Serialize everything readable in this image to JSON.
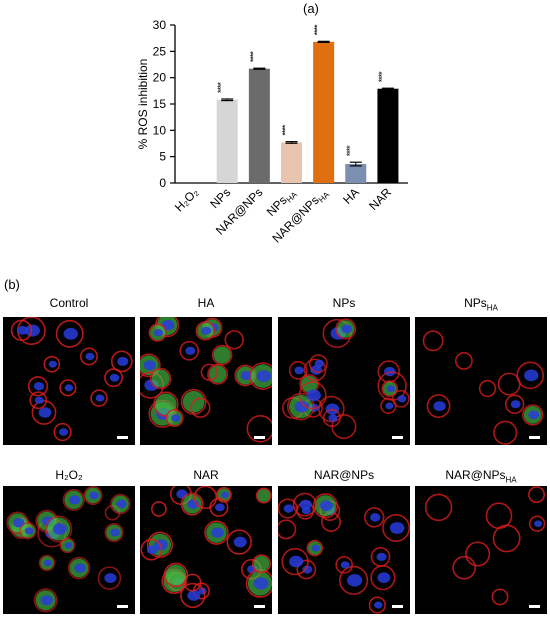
{
  "panel_a_label": "(a)",
  "panel_b_label": "(b)",
  "chart_data": {
    "type": "bar",
    "ylabel": "% ROS inhibition",
    "ylim": [
      0,
      30
    ],
    "yticks": [
      0,
      5,
      10,
      15,
      20,
      25,
      30
    ],
    "categories": [
      "H₂O₂",
      "NPs",
      "NAR@NPs",
      "NPs_HA",
      "NAR@NPs_HA",
      "HA",
      "NAR"
    ],
    "category_labels": [
      {
        "main": "H₂O₂",
        "sub": ""
      },
      {
        "main": "NPs",
        "sub": ""
      },
      {
        "main": "NAR@NPs",
        "sub": ""
      },
      {
        "main": "NPs",
        "sub": "HA"
      },
      {
        "main": "NAR@NPs",
        "sub": "HA"
      },
      {
        "main": "HA",
        "sub": ""
      },
      {
        "main": "NAR",
        "sub": ""
      }
    ],
    "values": [
      0,
      15.8,
      21.7,
      7.7,
      26.8,
      3.6,
      17.9
    ],
    "errors": [
      0,
      0.15,
      0.1,
      0.15,
      0.1,
      0.35,
      0.1
    ],
    "significance": [
      "",
      "****",
      "****",
      "****",
      "****",
      "****",
      "****"
    ],
    "colors": [
      "#ffffff",
      "#d6d6d6",
      "#6b6b6b",
      "#e8c3ad",
      "#e0700f",
      "#7c8fb0",
      "#000000"
    ],
    "legend": "none",
    "grid": false
  },
  "panel_b": {
    "images": [
      {
        "label": "Control",
        "sub": "",
        "green": 0.05,
        "red": 0.8,
        "blue": 0.7,
        "cells": 13
      },
      {
        "label": "HA",
        "sub": "",
        "green": 0.7,
        "red": 0.7,
        "blue": 0.3,
        "cells": 20
      },
      {
        "label": "NPs",
        "sub": "",
        "green": 0.25,
        "red": 0.6,
        "blue": 0.6,
        "cells": 18
      },
      {
        "label": "NPs",
        "sub": "HA",
        "green": 0.15,
        "red": 0.7,
        "blue": 0.1,
        "cells": 9
      },
      {
        "label": "H₂O₂",
        "sub": "",
        "green": 0.8,
        "red": 0.3,
        "blue": 0.5,
        "cells": 16
      },
      {
        "label": "NAR",
        "sub": "",
        "green": 0.45,
        "red": 0.85,
        "blue": 0.3,
        "cells": 20
      },
      {
        "label": "NAR@NPs",
        "sub": "",
        "green": 0.2,
        "red": 0.7,
        "blue": 0.6,
        "cells": 17
      },
      {
        "label": "NAR@NPs",
        "sub": "HA",
        "green": 0.05,
        "red": 0.75,
        "blue": 0.1,
        "cells": 8
      }
    ]
  }
}
